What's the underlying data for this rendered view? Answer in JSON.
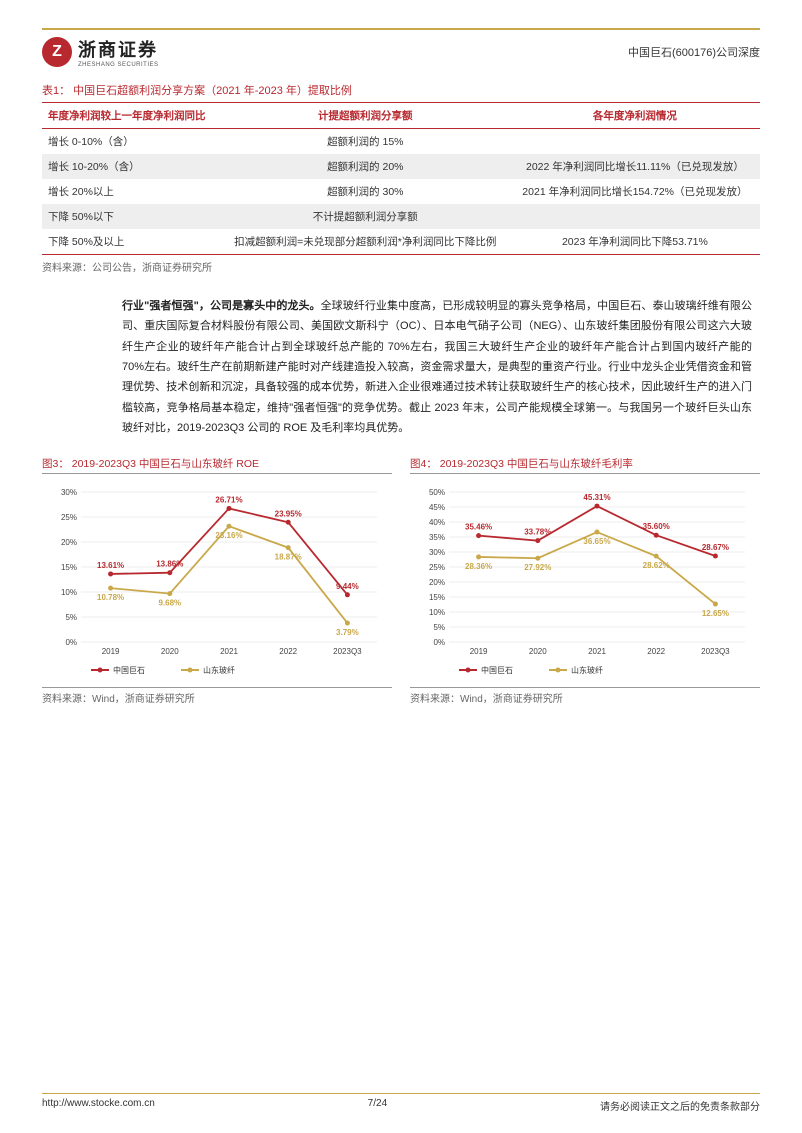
{
  "header": {
    "logo_cn": "浙商证券",
    "logo_en": "ZHESHANG SECURITIES",
    "right_text": "中国巨石(600176)公司深度"
  },
  "table1": {
    "title": "表1：  中国巨石超额利润分享方案（2021 年-2023 年）提取比例",
    "cols": [
      "年度净利润较上一年度净利润同比",
      "计提超额利润分享额",
      "各年度净利润情况"
    ],
    "rows": [
      {
        "c0": "增长 0-10%（含）",
        "c1": "超额利润的 15%",
        "c2": ""
      },
      {
        "c0": "增长 10-20%（含）",
        "c1": "超额利润的 20%",
        "c2": "2022 年净利润同比增长11.11%（已兑现发放）"
      },
      {
        "c0": "增长 20%以上",
        "c1": "超额利润的 30%",
        "c2": "2021 年净利润同比增长154.72%（已兑现发放）"
      },
      {
        "c0": "下降 50%以下",
        "c1": "不计提超额利润分享额",
        "c2": ""
      },
      {
        "c0": "下降 50%及以上",
        "c1": "扣减超额利润=未兑现部分超额利润*净利润同比下降比例",
        "c2": "2023 年净利润同比下降53.71%"
      }
    ],
    "source": "资料来源：公司公告，浙商证券研究所"
  },
  "paragraph": {
    "lead_bold": "行业\"强者恒强\"，公司是寡头中的龙头。",
    "body": "全球玻纤行业集中度高，已形成较明显的寡头竞争格局，中国巨石、泰山玻璃纤维有限公司、重庆国际复合材料股份有限公司、美国欧文斯科宁（OC）、日本电气硝子公司（NEG）、山东玻纤集团股份有限公司这六大玻纤生产企业的玻纤年产能合计占到全球玻纤总产能的 70%左右，我国三大玻纤生产企业的玻纤年产能合计占到国内玻纤产能的 70%左右。玻纤生产在前期新建产能时对产线建造投入较高，资金需求量大，是典型的重资产行业。行业中龙头企业凭借资金和管理优势、技术创新和沉淀，具备较强的成本优势，新进入企业很难通过技术转让获取玻纤生产的核心技术，因此玻纤生产的进入门槛较高，竞争格局基本稳定，维持\"强者恒强\"的竞争优势。截止 2023 年末，公司产能规模全球第一。与我国另一个玻纤巨头山东玻纤对比，2019-2023Q3 公司的 ROE 及毛利率均具优势。"
  },
  "chart3": {
    "title": "图3：  2019-2023Q3 中国巨石与山东玻纤 ROE",
    "type": "line",
    "categories": [
      "2019",
      "2020",
      "2021",
      "2022",
      "2023Q3"
    ],
    "series": [
      {
        "name": "中国巨石",
        "color": "#b8292f",
        "values": [
          13.61,
          13.86,
          26.71,
          23.95,
          9.44
        ],
        "labels": [
          "13.61%",
          "13.86%",
          "26.71%",
          "23.95%",
          "9.44%"
        ]
      },
      {
        "name": "山东玻纤",
        "color": "#c9a84a",
        "values": [
          10.78,
          9.68,
          23.16,
          18.87,
          3.79
        ],
        "labels": [
          "10.78%",
          "9.68%",
          "23.16%",
          "18.87%",
          "3.79%"
        ]
      }
    ],
    "ylim": [
      0,
      30
    ],
    "ytick_step": 5,
    "ytick_format": "%",
    "background_color": "#ffffff",
    "grid_color": "#d9d9d9",
    "label_fontsize": 8,
    "source": "资料来源：Wind，浙商证券研究所"
  },
  "chart4": {
    "title": "图4：  2019-2023Q3 中国巨石与山东玻纤毛利率",
    "type": "line",
    "categories": [
      "2019",
      "2020",
      "2021",
      "2022",
      "2023Q3"
    ],
    "series": [
      {
        "name": "中国巨石",
        "color": "#b8292f",
        "values": [
          35.46,
          33.78,
          45.31,
          35.6,
          28.67
        ],
        "labels": [
          "35.46%",
          "33.78%",
          "45.31%",
          "35.60%",
          "28.67%"
        ]
      },
      {
        "name": "山东玻纤",
        "color": "#c9a84a",
        "values": [
          28.36,
          27.92,
          36.65,
          28.62,
          12.65
        ],
        "labels": [
          "28.36%",
          "27.92%",
          "36.65%",
          "28.62%",
          "12.65%"
        ]
      }
    ],
    "ylim": [
      0,
      50
    ],
    "ytick_step": 5,
    "ytick_format": "%",
    "background_color": "#ffffff",
    "grid_color": "#d9d9d9",
    "label_fontsize": 8,
    "source": "资料来源：Wind，浙商证券研究所"
  },
  "footer": {
    "left": "http://www.stocke.com.cn",
    "center": "7/24",
    "right": "请务必阅读正文之后的免责条款部分"
  }
}
